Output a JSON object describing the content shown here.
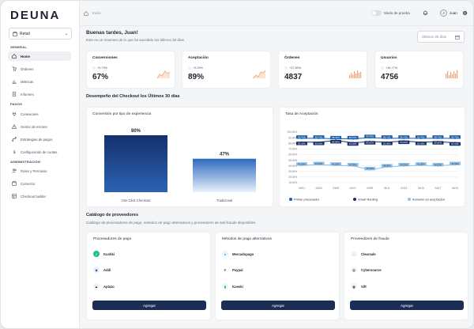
{
  "brand": "DEUNA",
  "store_selector": {
    "label": "Retail"
  },
  "sidebar": {
    "sections": [
      {
        "label": "GENERAL"
      },
      {
        "label": "PAGOS"
      },
      {
        "label": "ADMINISTRACIÓN"
      }
    ],
    "items": [
      {
        "label": "Home",
        "icon": "home-icon"
      },
      {
        "label": "Órdenes",
        "icon": "cart-icon"
      },
      {
        "label": "Métricas",
        "icon": "chart-icon"
      },
      {
        "label": "Informes",
        "icon": "document-icon"
      },
      {
        "label": "Conexiones",
        "icon": "plug-icon"
      },
      {
        "label": "Gestor de errores",
        "icon": "warning-icon"
      },
      {
        "label": "Estrategias de pagos",
        "icon": "route-icon"
      },
      {
        "label": "Configuración de cuotas",
        "icon": "dollar-icon"
      },
      {
        "label": "Roles y Permisos",
        "icon": "users-icon"
      },
      {
        "label": "Comercio",
        "icon": "store-icon"
      },
      {
        "label": "Checkout builder",
        "icon": "builder-icon"
      }
    ]
  },
  "header": {
    "breadcrumb": "Inicio",
    "mode_label": "Modo de prueba",
    "avatar_initial": "J",
    "user": "Juan"
  },
  "greeting": {
    "title": "Buenas tardes, Juan!",
    "subtitle": "Este es un resumen de lo que ha sucedido los últimos 30 días",
    "date_range": "Últimos 30 días"
  },
  "kpis": [
    {
      "title": "Conversiones",
      "change": "+5.73%",
      "value": "67%"
    },
    {
      "title": "Aceptación",
      "change": "+3.29%",
      "value": "89%"
    },
    {
      "title": "Órdenes",
      "change": "+37.80%",
      "value": "4837"
    },
    {
      "title": "Usuarios",
      "change": "+34.77%",
      "value": "4756"
    }
  ],
  "performance_title": "Desempeño del Checkout los Últimos  30 días",
  "conversion_card": {
    "title": "Conversión por tipo de experiencia"
  },
  "rate_card": {
    "title": "Tasa de Aceptación"
  },
  "chart_data": [
    {
      "type": "bar",
      "title": "Conversión por tipo de experiencia",
      "categories": [
        "One Click Checkout",
        "Tradicional"
      ],
      "values": [
        80,
        47
      ],
      "value_labels": [
        "80%",
        "47%"
      ]
    },
    {
      "type": "line",
      "title": "Tasa de Aceptación",
      "x": [
        "04/01",
        "04/03",
        "04/05",
        "04/07",
        "04/09",
        "04/11",
        "04/13",
        "04/15",
        "04/17",
        "04/19"
      ],
      "ylim": [
        10,
        100
      ],
      "yticks": [
        "100.00%",
        "90.00%",
        "80.00%",
        "70.00%",
        "60.00%",
        "50.00%",
        "40.00%",
        "30.00%",
        "20.00%",
        "10.00%"
      ],
      "series": [
        {
          "name": "Primer procesador",
          "color": "#1f5fa8",
          "values": [
            89,
            89,
            88,
            88,
            90,
            89,
            89,
            89,
            89,
            89
          ],
          "labels": [
            "89.20%",
            "89.13%",
            "88.45%",
            "88.45%",
            "89.90%",
            "89.11%",
            "89.13%",
            "89.20%",
            "89.13%",
            "89.20%"
          ]
        },
        {
          "name": "Smart Routing",
          "color": "#15306a",
          "values": [
            82,
            82,
            85,
            81,
            83,
            82,
            84,
            82,
            83,
            81
          ],
          "labels": [
            "82.00%",
            "82.06%",
            "84.84%",
            "81.00%",
            "82.81%",
            "82.06%",
            "84.00%",
            "82.06%",
            "82.81%",
            "81.00%"
          ]
        },
        {
          "name": "Aumento en aceptación",
          "color": "#8ec1ea",
          "values": [
            41,
            42,
            41,
            40,
            33,
            38,
            40,
            41,
            40,
            42
          ],
          "labels": [
            "41.00%",
            "42.00%",
            "41.00%",
            "40.00%",
            "33.00%",
            "38.00%",
            "40.00%",
            "41.00%",
            "40.00%",
            "42.00%"
          ]
        }
      ]
    }
  ],
  "catalog": {
    "title": "Catálogo de proveedores",
    "subtitle": "Catálogo de procesadores de pago, métodos de pago alternativos y proveedores de anti-fraude disponibles",
    "cards": [
      {
        "title": "Procesadores de pago",
        "items": [
          {
            "name": "Kushki",
            "icon": "kushki-icon"
          },
          {
            "name": "Addi",
            "icon": "addi-icon"
          },
          {
            "name": "Aplazo",
            "icon": "aplazo-icon"
          }
        ],
        "button": "Agregar"
      },
      {
        "title": "Métodos de pago alternativos",
        "items": [
          {
            "name": "Mercadopago",
            "icon": "mercadopago-icon"
          },
          {
            "name": "Paypal",
            "icon": "paypal-icon"
          },
          {
            "name": "Kueski",
            "icon": "kueski-icon"
          }
        ],
        "button": "Agregar"
      },
      {
        "title": "Proveedores de fraude",
        "items": [
          {
            "name": "Clearsale",
            "icon": "clearsale-icon"
          },
          {
            "name": "Cybersource",
            "icon": "cybersource-icon"
          },
          {
            "name": "Sift",
            "icon": "sift-icon"
          }
        ],
        "button": "Agregar"
      }
    ]
  }
}
